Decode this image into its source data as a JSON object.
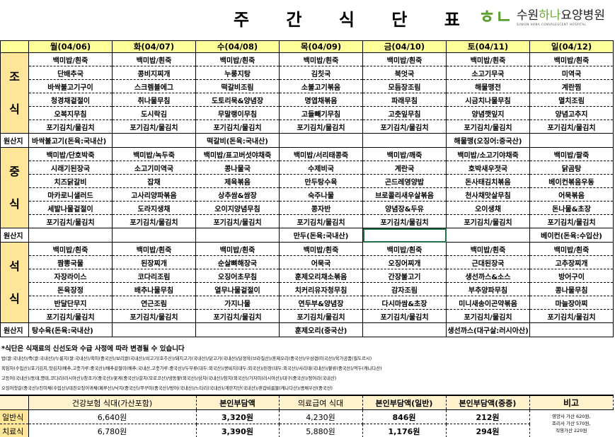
{
  "title": "주 간 식 단 표",
  "logo": {
    "mark": "하나",
    "name_pre": "수원",
    "name_green": "하나",
    "name_post": "요양병원",
    "subtitle": "SUWON HANA CONVALESCENT HOSPITAL"
  },
  "days": [
    "월(04/06)",
    "화(04/07)",
    "수(04/08)",
    "목(04/09)",
    "금(04/10)",
    "토(04/11)",
    "일(04/12)"
  ],
  "origin_label": "원산지",
  "meals": [
    {
      "label_top": "조",
      "label_bottom": "식",
      "rows": [
        [
          "백미밥/흰죽",
          "백미밥/흰죽",
          "백미밥/흰죽",
          "백미밥/흰죽",
          "백미밥/흰죽",
          "백미밥/흰죽",
          "백미밥/흰죽"
        ],
        [
          "단배추국",
          "콩비지찌개",
          "누룽지탕",
          "김칫국",
          "북엇국",
          "소고기무국",
          "미역국"
        ],
        [
          "바싹불고기구이",
          "스크렘블에그",
          "떡갈비조림",
          "소불고기볶음",
          "모듬장조림",
          "해물맹전",
          "계란찜"
        ],
        [
          "청경채겉절이",
          "취나물무침",
          "도토리묵&양념장",
          "명엽채볶음",
          "파래무침",
          "시금치나물무침",
          "멸치조림"
        ],
        [
          "오복지무침",
          "도시락김",
          "무말랭이무침",
          "고들빼기무침",
          "고춧잎무침",
          "양념깻잎지",
          "양념고추지"
        ],
        [
          "포기김치/물김치",
          "포기김치/물김치",
          "포기김치/물김치",
          "포기김치/물김치",
          "포기김치/물김치",
          "포기김치/물김치",
          "포기김치/물김치"
        ]
      ],
      "origin": [
        "바싹불고기(돈육:국내산)",
        "",
        "떡갈비(돈육:국내산)",
        "",
        "",
        "해물맹(오징어:중국산)",
        ""
      ]
    },
    {
      "label_top": "중",
      "label_bottom": "식",
      "rows": [
        [
          "백미밥/단호박죽",
          "백미밥/녹두죽",
          "백미밥/표고버섯야채죽",
          "백미밥/서리태콩죽",
          "백미밥/깨죽",
          "백미밥/소고기야채죽",
          "백미밥/팥죽"
        ],
        [
          "시래기된장국",
          "소고기미역국",
          "콩나물국",
          "수제비국",
          "계란국",
          "호박새우젓국",
          "닭곰탕"
        ],
        [
          "치즈닭갈비",
          "잡채",
          "제육볶음",
          "만두탕수육",
          "곤드레영양밥",
          "돈사태김치볶음",
          "베이컨볶음우동"
        ],
        [
          "마카로니샐러드",
          "고사리양파볶음",
          "상추쌈&쌈장",
          "숙주나물",
          "브로콜리새우살볶음",
          "천사채맛살무침",
          "어묵볶음"
        ],
        [
          "세발나물겉절이",
          "도라지생채",
          "오이지양념무침",
          "콩자반",
          "양념장&두유",
          "오이생채",
          "돈나물&초장"
        ],
        [
          "포기김치/물김치",
          "포기김치/물김치",
          "포기김치/물김치",
          "포기김치/물김치",
          "포기김치/물김치",
          "포기김치/물김치",
          "포기김치/물김치"
        ]
      ],
      "origin": [
        "",
        "",
        "",
        "만두(돈육:국내산)",
        "",
        "",
        "베이컨(돈육:수입산)"
      ]
    },
    {
      "label_top": "석",
      "label_bottom": "식",
      "rows": [
        [
          "백미밥/흰죽",
          "백미밥/흰죽",
          "백미밥/흰죽",
          "백미밥/흰죽",
          "백미밥/흰죽",
          "백미밥/흰죽",
          "백미밥/흰죽"
        ],
        [
          "짬뽕국물",
          "된장찌개",
          "순살뼈해장국",
          "어묵국",
          "오징어찌개",
          "근대된장국",
          "고추장찌개"
        ],
        [
          "자장라이스",
          "코다리조림",
          "오징어초무침",
          "훈제오리채소볶음",
          "간장불고기",
          "생선까스&소스",
          "방어구이"
        ],
        [
          "돈육장정",
          "배추나물무침",
          "열무나물겉절이",
          "치커리유자청무침",
          "감자조림",
          "부추양파무침",
          "콩나물무침"
        ],
        [
          "반달단무지",
          "연근조림",
          "가지나물",
          "연두부&양념장",
          "다시마쌈&초장",
          "미니새송이곤약볶음",
          "마늘장아찌"
        ],
        [
          "포기김치/물김치",
          "포기김치/물김치",
          "포기김치/물김치",
          "포기김치/물김치",
          "포기김치/물김치",
          "포기김치/물김치",
          "포기김치/물김치"
        ]
      ],
      "origin": [
        "탕수육(돈육:국내산)",
        "",
        "",
        "훈제오리(중국산)",
        "",
        "생선까스(대구살:러시아산)",
        ""
      ]
    }
  ],
  "notes": [
    "*식단은 식재료의  신선도와 수급 사정에 따라 변경될 수 있습니다",
    "밥(쌀:국내산)/죽(쌀:국내산)/누룽지(쌀:국내산)/흑미(중국산)/보리쌀(국내산)/쇠고기(호주산)/돼지고기(국내산)/닭고기(국내산)/닭정육(브라질산)/훈제오리(중국산)/우삼겹(미국산)/육가공품(필도르시)",
    "흑임자(수입산)/포기김치,맛김치(배추,고춧가루:중국산)/배추겉절이(배추:국내산,고춧가루:중국산)/두부류(대두:외국산)/콩비지(대두:외국산)/된장(대두:외국산)/서리태(국내산)/팥류(중국산)/적두(캐나다산)",
    "고등어(국내산)/동태,명태,코다리(러시아산)/참조기(중국산)/꽃게(중국산)/갈치(모로코산)/냉동팥(외국산)/삼치(국내산)/참치(외국산)/가자미(러시아산)/대구(중국산)/정어리(국내산)",
    "오징어젓갈(중국산)/진미채(수입산)/데친오징어귀채(페루산)/낙지(중국산)/쭈꾸미(중국산)/방어(국내산)/느타리(국내산)/계란지단(국내산)/훈갑비름물(캐나다산)/콩채우산(중국산)"
  ],
  "cost": {
    "headers": [
      "",
      "건강보험 식대(가산포함)",
      "본인부담액",
      "의료급여 식대",
      "본인부담액(일반)",
      "본인부담액(중증)",
      "비고"
    ],
    "rows": [
      {
        "label": "일반식",
        "values": [
          "6,640원",
          "3,320원",
          "4,230원",
          "846원",
          "212원"
        ]
      },
      {
        "label": "치료식",
        "values": [
          "6,780원",
          "3,390원",
          "5,880원",
          "1,176원",
          "294원"
        ]
      }
    ],
    "remark": [
      "영양사 가산 620원,",
      "조리사 가산 570원,",
      "직영가산 220원"
    ]
  },
  "colors": {
    "header_bg": "#ffff99",
    "meal_label_bg": "#ffe699",
    "cost_header_bg": "#fff2cc",
    "logo_green": "#5a9e2c",
    "selection": "#217346"
  }
}
